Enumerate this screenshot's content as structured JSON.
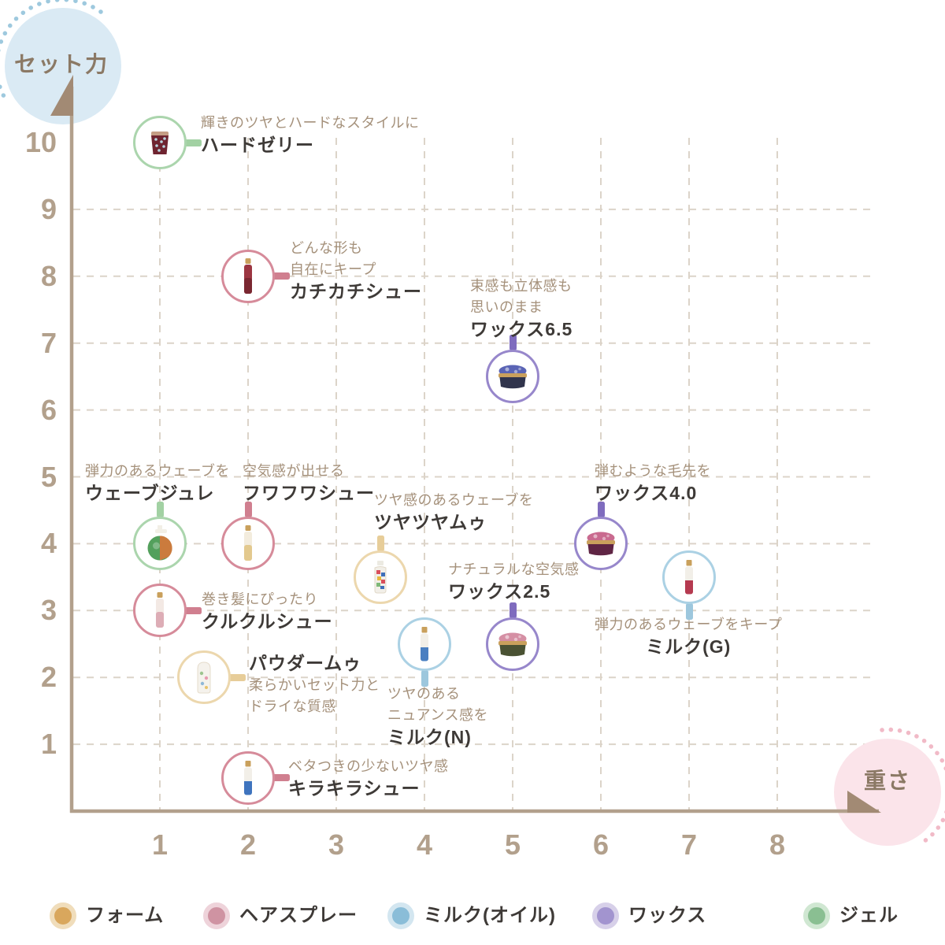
{
  "chart_data": {
    "type": "scatter",
    "title": "",
    "xlabel": "重さ",
    "ylabel": "セット力",
    "xlim": [
      0,
      9
    ],
    "ylim": [
      0,
      11
    ],
    "x_ticks": [
      1,
      2,
      3,
      4,
      5,
      6,
      7,
      8
    ],
    "y_ticks": [
      1,
      2,
      3,
      4,
      5,
      6,
      7,
      8,
      9,
      10
    ],
    "grid": "dashed",
    "legend_position": "bottom",
    "series": [
      {
        "name": "フォーム",
        "colors": {
          "ring": "#ecd7ad",
          "bar": "#e7cd99",
          "dot": "#d9a75d",
          "halo": "#f0ddbb"
        },
        "points": [
          {
            "id": "tsuyatsuya-mou",
            "name": "ツヤツヤムゥ",
            "caption": [
              "ツヤ感のあるウェーブを"
            ],
            "x": 3.5,
            "y": 3.5,
            "label_placement": "above",
            "label_offset": {
              "dx": -8,
              "dy": -111
            },
            "icon": {
              "type": "mosaic",
              "body": "#f2efe8",
              "accent": "#d94f5c",
              "cap": "#eceae2"
            }
          },
          {
            "id": "powder-mou",
            "name": "パウダームゥ",
            "caption": [
              "柔らかいセット力と",
              "ドライな質感"
            ],
            "x": 1.5,
            "y": 2,
            "label_placement": "right",
            "label_offset": {
              "dx": 57,
              "dy": -32
            },
            "name_first": true,
            "icon": {
              "type": "round",
              "body": "#f5f2ec",
              "accent": "#9cc48e",
              "cap": "#e8dfd2"
            }
          }
        ]
      },
      {
        "name": "ヘアスプレー",
        "colors": {
          "ring": "#d68b9a",
          "bar": "#d07f8f",
          "dot": "#cf93a2",
          "halo": "#eed3da"
        },
        "points": [
          {
            "id": "kachikachi-chou",
            "name": "カチカチシュー",
            "caption": [
              "どんな形も",
              "自在にキープ"
            ],
            "x": 2,
            "y": 8,
            "label_placement": "right",
            "label_offset": {
              "dx": 53,
              "dy": -49
            },
            "icon": {
              "type": "spray",
              "body": "#9c3642",
              "accent": "#7a2731",
              "cap": "#c9a05c"
            }
          },
          {
            "id": "fuwafuwa-chou",
            "name": "フワフワシュー",
            "caption": [
              "空気感が出せる"
            ],
            "x": 2,
            "y": 4,
            "label_placement": "above",
            "label_offset": {
              "dx": -7,
              "dy": -105
            },
            "icon": {
              "type": "spray",
              "body": "#f3ecdd",
              "accent": "#e3c98e",
              "cap": "#c9a05c"
            }
          },
          {
            "id": "kurukuru-chou",
            "name": "クルクルシュー",
            "caption": [
              "巻き髪にぴったり"
            ],
            "x": 1,
            "y": 3,
            "label_placement": "right",
            "label_offset": {
              "dx": 53,
              "dy": -27
            },
            "icon": {
              "type": "spray",
              "body": "#f3e9e4",
              "accent": "#ddadb6",
              "cap": "#c9a05c"
            }
          },
          {
            "id": "kirakira-chou",
            "name": "キラキラシュー",
            "caption": [
              "ベタつきの少ないツヤ感"
            ],
            "x": 2,
            "y": 0.5,
            "label_placement": "right",
            "label_offset": {
              "dx": 51,
              "dy": -28
            },
            "icon": {
              "type": "bottle",
              "body": "#f2efe8",
              "accent": "#3f74be",
              "cap": "#c9a05c"
            }
          }
        ]
      },
      {
        "name": "ミルク(オイル)",
        "colors": {
          "ring": "#abd1e4",
          "bar": "#9dc7dd",
          "dot": "#8abdd8",
          "halo": "#d3e6f0"
        },
        "points": [
          {
            "id": "milk-n",
            "name": "ミルク(N)",
            "caption": [
              "ツヤのある",
              "ニュアンス感を"
            ],
            "x": 4,
            "y": 2.5,
            "label_placement": "below",
            "label_offset": {
              "dx": -47,
              "dy": 50
            },
            "icon": {
              "type": "bottle",
              "body": "#f2efe8",
              "accent": "#4a7fc1",
              "cap": "#c9a05c"
            }
          },
          {
            "id": "milk-g",
            "name": "ミルク(G)",
            "caption": [
              "弾力のあるウェーブをキープ"
            ],
            "x": 7,
            "y": 3.5,
            "label_placement": "below",
            "label_offset": {
              "dx": -120,
              "dy": 47
            },
            "name_align": "center",
            "icon": {
              "type": "bottle",
              "body": "#f2efe8",
              "accent": "#b53a50",
              "cap": "#c9a05c"
            }
          }
        ]
      },
      {
        "name": "ワックス",
        "colors": {
          "ring": "#9787cb",
          "bar": "#7f6cbe",
          "dot": "#a294cf",
          "halo": "#d7d0e9"
        },
        "points": [
          {
            "id": "wax-6-5",
            "name": "ワックス6.5",
            "caption": [
              "束感も立体感も",
              "思いのまま"
            ],
            "x": 5,
            "y": 6.5,
            "label_placement": "above",
            "label_offset": {
              "dx": -54,
              "dy": -128
            },
            "icon": {
              "type": "jar",
              "body": "#30344c",
              "accent": "#5a64b5",
              "cap": "#c9a05c"
            }
          },
          {
            "id": "wax-4-0",
            "name": "ワックス4.0",
            "caption": [
              "弾むような毛先を"
            ],
            "x": 6,
            "y": 4,
            "label_placement": "above",
            "label_offset": {
              "dx": -8,
              "dy": -105
            },
            "icon": {
              "type": "jar",
              "body": "#5f2544",
              "accent": "#c96a8f",
              "cap": "#c9a05c"
            }
          },
          {
            "id": "wax-2-5",
            "name": "ワックス2.5",
            "caption": [
              "ナチュラルな空気感"
            ],
            "x": 5,
            "y": 2.5,
            "label_placement": "above",
            "label_offset": {
              "dx": -82,
              "dy": -108
            },
            "icon": {
              "type": "jar",
              "body": "#4a5233",
              "accent": "#d58fa4",
              "cap": "#c9a05c"
            }
          }
        ]
      },
      {
        "name": "ジェル",
        "colors": {
          "ring": "#abd5ad",
          "bar": "#a2d1a3",
          "dot": "#8abf92",
          "halo": "#d0e7d2"
        },
        "points": [
          {
            "id": "hard-jelly",
            "name": "ハードゼリー",
            "caption": [
              "輝きのツヤとハードなスタイルに"
            ],
            "x": 1,
            "y": 10,
            "label_placement": "right",
            "label_offset": {
              "dx": 52,
              "dy": -38
            },
            "icon": {
              "type": "cup",
              "body": "#6f2430",
              "accent": "#b8d4de",
              "cap": "#c59e85"
            }
          },
          {
            "id": "wave-jule",
            "name": "ウェーブジュレ",
            "caption": [
              "弾力のあるウェーブを"
            ],
            "x": 1,
            "y": 4,
            "label_placement": "above",
            "label_offset": {
              "dx": -95,
              "dy": -105
            },
            "icon": {
              "type": "pump",
              "body": "#53a05c",
              "accent": "#d8773a",
              "cap": "#f2efe6"
            }
          }
        ]
      }
    ]
  }
}
